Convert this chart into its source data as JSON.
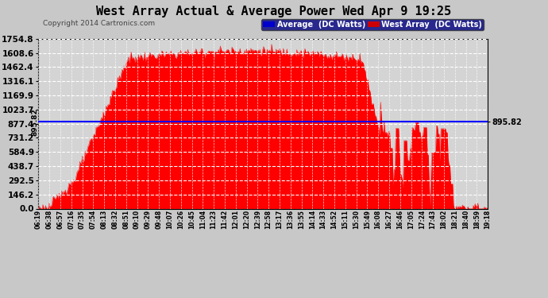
{
  "title": "West Array Actual & Average Power Wed Apr 9 19:25",
  "copyright": "Copyright 2014 Cartronics.com",
  "ylabel_right_values": [
    1754.8,
    1608.6,
    1462.4,
    1316.1,
    1169.9,
    1023.7,
    877.4,
    731.2,
    584.9,
    438.7,
    292.5,
    146.2,
    0.0
  ],
  "avg_value": 895.82,
  "avg_label": "895.82",
  "ymax": 1754.8,
  "ymin": 0.0,
  "bg_color": "#c8c8c8",
  "plot_bg_color": "#d4d4d4",
  "grid_color": "#aaaaaa",
  "fill_color": "#ff0000",
  "line_color": "#ff0000",
  "avg_line_color": "#0000ff",
  "title_color": "#000000",
  "legend_avg_bg": "#0000cc",
  "legend_west_bg": "#cc0000",
  "x_tick_labels": [
    "06:19",
    "06:38",
    "06:57",
    "07:16",
    "07:35",
    "07:54",
    "08:13",
    "08:32",
    "08:51",
    "09:10",
    "09:29",
    "09:48",
    "10:07",
    "10:26",
    "10:45",
    "11:04",
    "11:23",
    "11:42",
    "12:01",
    "12:20",
    "12:39",
    "12:58",
    "13:17",
    "13:36",
    "13:55",
    "14:14",
    "14:33",
    "14:52",
    "15:11",
    "15:30",
    "15:49",
    "16:08",
    "16:27",
    "16:46",
    "17:05",
    "17:24",
    "17:43",
    "18:02",
    "18:21",
    "18:40",
    "18:59",
    "19:18"
  ],
  "n_points": 500
}
